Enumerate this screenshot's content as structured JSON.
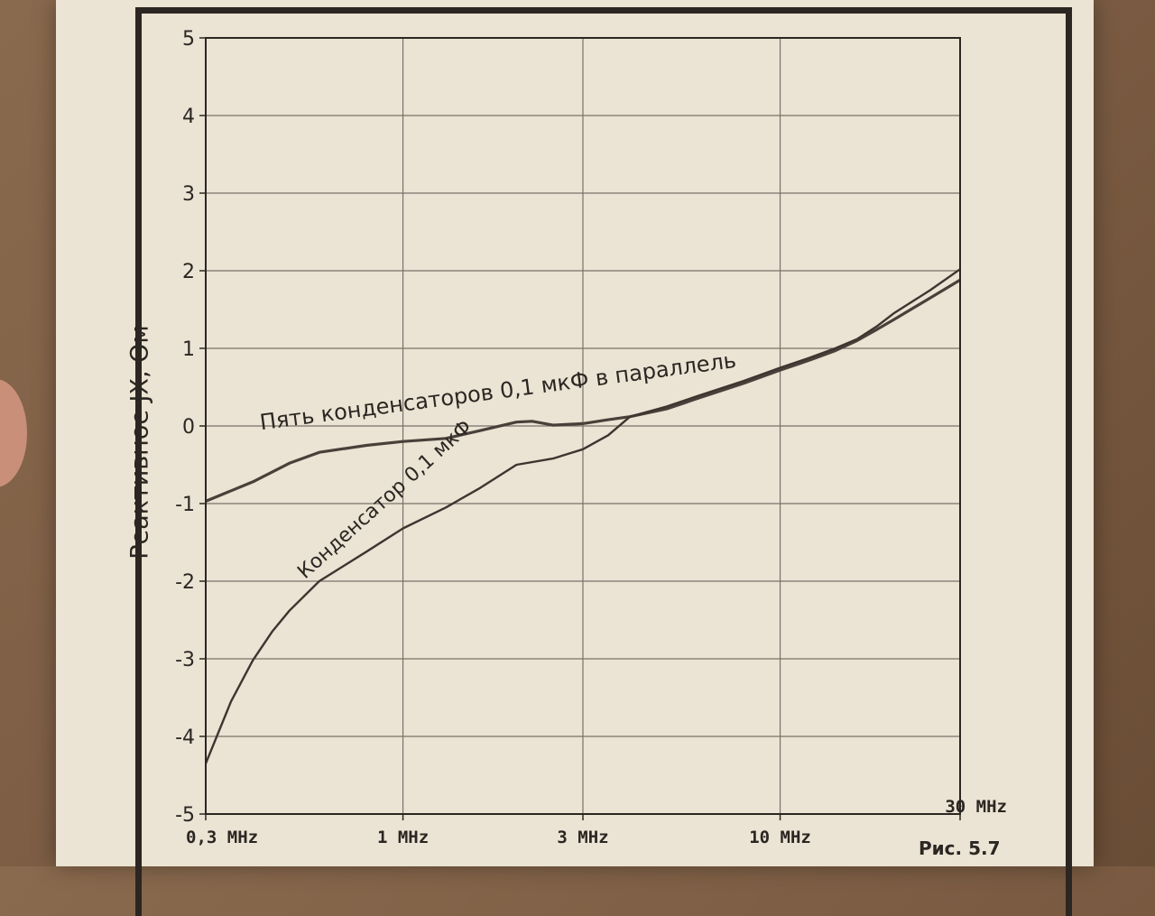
{
  "figure_label": "Рис. 5.7",
  "chart_data": {
    "type": "line",
    "xscale": "log",
    "xlim": [
      0.3,
      30
    ],
    "ylim": [
      -5,
      5
    ],
    "grid": true,
    "ylabel": "Реактивное JX, Ом",
    "xticks": [
      {
        "value": 0.3,
        "label": "0,3 MHz"
      },
      {
        "value": 1,
        "label": "1 MHz"
      },
      {
        "value": 3,
        "label": "3 MHz"
      },
      {
        "value": 10,
        "label": "10 MHz"
      },
      {
        "value": 30,
        "label": "30 MHz"
      }
    ],
    "yticks": [
      5,
      4,
      3,
      2,
      1,
      0,
      -1,
      -2,
      -3,
      -4,
      -5
    ],
    "series": [
      {
        "name": "Пять конденсаторов 0,1 мкФ в параллель",
        "color": "#4a403a",
        "x": [
          0.3,
          0.4,
          0.5,
          0.6,
          0.8,
          1.0,
          1.3,
          1.6,
          2.0,
          2.2,
          2.5,
          3.0,
          3.5,
          4.0,
          5.0,
          6.0,
          8.0,
          10,
          12,
          14,
          16,
          18,
          20,
          25,
          30
        ],
        "y": [
          -0.97,
          -0.72,
          -0.48,
          -0.34,
          -0.25,
          -0.2,
          -0.16,
          -0.06,
          0.05,
          0.06,
          0.01,
          0.03,
          0.08,
          0.12,
          0.22,
          0.35,
          0.55,
          0.72,
          0.85,
          0.97,
          1.1,
          1.24,
          1.37,
          1.65,
          1.88
        ]
      },
      {
        "name": "Конденсатор 0,1 мкФ",
        "color": "#3e3530",
        "x": [
          0.3,
          0.35,
          0.4,
          0.45,
          0.5,
          0.6,
          0.8,
          1.0,
          1.3,
          1.6,
          2.0,
          2.5,
          3.0,
          3.5,
          4.0,
          5.0,
          6.0,
          8.0,
          10,
          12,
          14,
          16,
          18,
          20,
          25,
          30
        ],
        "y": [
          -4.35,
          -3.55,
          -3.02,
          -2.65,
          -2.38,
          -2.0,
          -1.62,
          -1.32,
          -1.05,
          -0.8,
          -0.5,
          -0.42,
          -0.3,
          -0.12,
          0.12,
          0.25,
          0.38,
          0.58,
          0.75,
          0.88,
          1.0,
          1.12,
          1.28,
          1.45,
          1.75,
          2.02
        ]
      }
    ]
  }
}
